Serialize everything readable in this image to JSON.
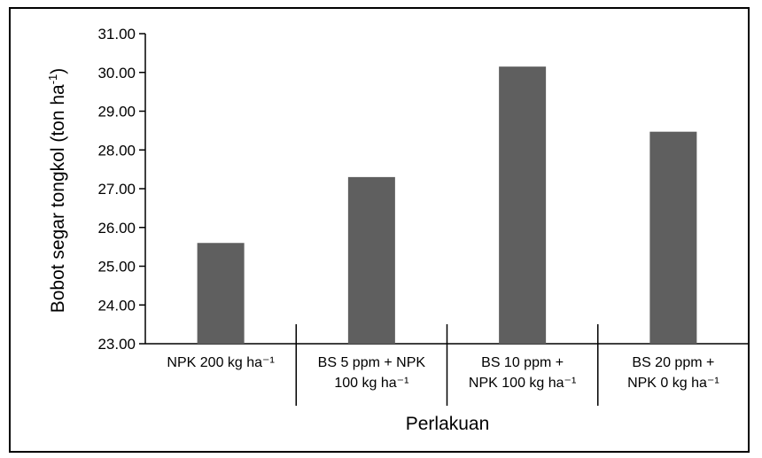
{
  "chart_data": {
    "type": "bar",
    "categories": [
      [
        "NPK 200 kg ha⁻¹"
      ],
      [
        "BS 5 ppm + NPK",
        "100 kg ha⁻¹"
      ],
      [
        "BS 10 ppm +",
        "NPK 100 kg ha⁻¹"
      ],
      [
        "BS 20 ppm +",
        "NPK 0 kg ha⁻¹"
      ]
    ],
    "values": [
      25.6,
      27.3,
      30.15,
      28.47
    ],
    "ylim": [
      23.0,
      31.0
    ],
    "yticks": [
      "23.00",
      "24.00",
      "25.00",
      "26.00",
      "27.00",
      "28.00",
      "29.00",
      "30.00",
      "31.00"
    ],
    "xlabel": "Perlakuan",
    "ylabel_main": "Bobot segar tongkol (ton ha",
    "ylabel_sup": "-1",
    "ylabel_end": ")",
    "bar_color": "#5f5f5f",
    "grid": false,
    "legend": "none"
  }
}
